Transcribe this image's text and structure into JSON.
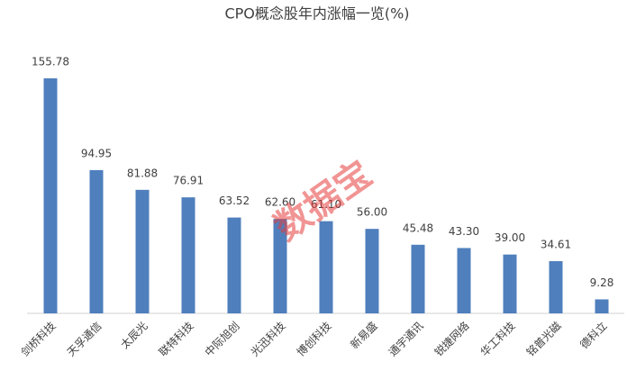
{
  "chart_data": {
    "type": "bar",
    "title": "CPO概念股年内涨幅一览(%)",
    "watermark": "数据宝",
    "categories": [
      "剑桥科技",
      "天孚通信",
      "太辰光",
      "联特科技",
      "中际旭创",
      "光迅科技",
      "博创科技",
      "新易盛",
      "通宇通讯",
      "锐捷网络",
      "华工科技",
      "铭普光磁",
      "德科立"
    ],
    "values": [
      155.78,
      94.95,
      81.88,
      76.91,
      63.52,
      62.6,
      61.1,
      56,
      45.48,
      43.3,
      39,
      34.61,
      9.28
    ],
    "value_labels": [
      "155.78",
      "94.95",
      "81.88",
      "76.91",
      "63.52",
      "62.60",
      "61.10",
      "56.00",
      "45.48",
      "43.30",
      "39.00",
      "34.61",
      "9.28"
    ],
    "color": "#4f7fbd"
  }
}
